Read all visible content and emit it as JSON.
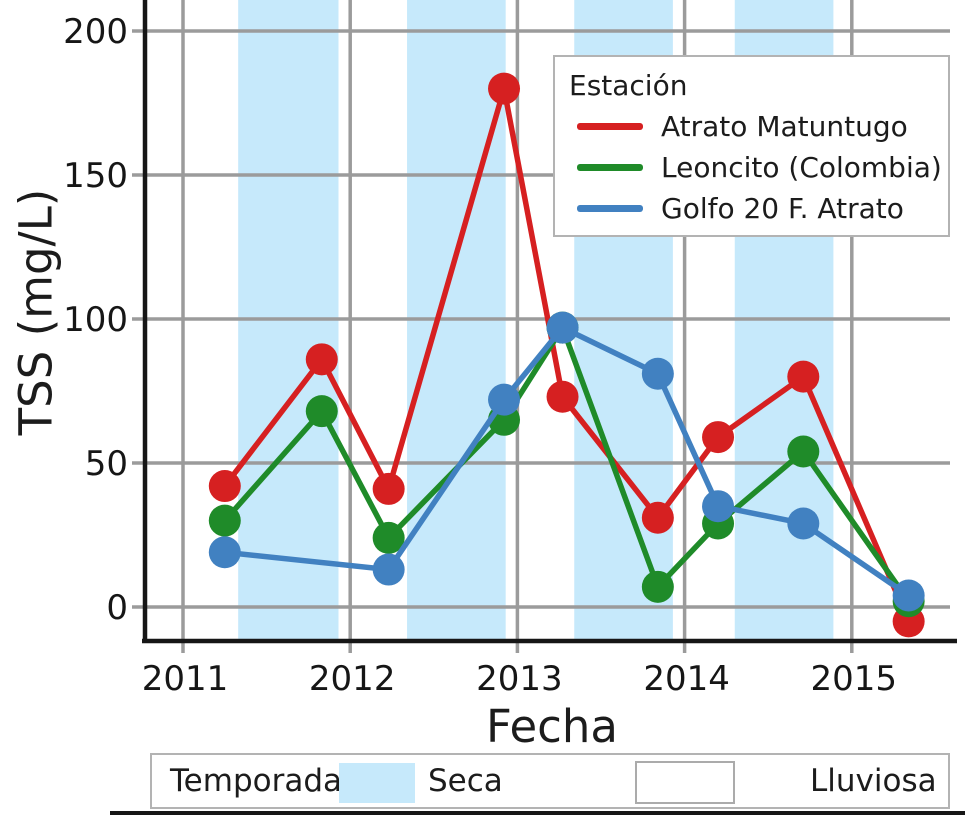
{
  "chart_data": {
    "type": "line",
    "title": "",
    "xlabel": "Fecha",
    "ylabel": "TSS (mg/L)",
    "x_ticks": [
      2011,
      2012,
      2013,
      2014,
      2015
    ],
    "y_ticks": [
      0,
      50,
      100,
      150,
      200
    ],
    "xlim": [
      2010.77,
      2015.6
    ],
    "ylim": [
      -12,
      211
    ],
    "grid": true,
    "legend_title": "Estación",
    "legend_position": "upper right",
    "x": [
      2011.25,
      2011.83,
      2012.23,
      2012.92,
      2013.27,
      2013.84,
      2014.2,
      2014.71,
      2015.34
    ],
    "series": [
      {
        "name": "Atrato Matuntugo",
        "color": "#d62021",
        "values": [
          42,
          86,
          41,
          180,
          73,
          31,
          59,
          80,
          -5
        ]
      },
      {
        "name": "Leoncito (Colombia)",
        "color": "#1f8b29",
        "values": [
          30,
          68,
          24,
          65,
          97,
          7,
          29,
          54,
          2
        ]
      },
      {
        "name": "Golfo 20 F. Atrato",
        "color": "#4181c1",
        "values": [
          19,
          null,
          13,
          72,
          97,
          81,
          35,
          29,
          4
        ]
      }
    ],
    "season_bands": {
      "color": "#c6e9fb",
      "intervals": [
        [
          2011.33,
          2011.93
        ],
        [
          2012.34,
          2012.93
        ],
        [
          2013.34,
          2013.93
        ],
        [
          2014.3,
          2014.89
        ]
      ]
    },
    "season_legend": {
      "label": "Temporada",
      "items": [
        {
          "label": "Seca",
          "color": "#c6e9fb"
        },
        {
          "label": "Lluviosa",
          "color": "#ffffff"
        }
      ]
    }
  }
}
